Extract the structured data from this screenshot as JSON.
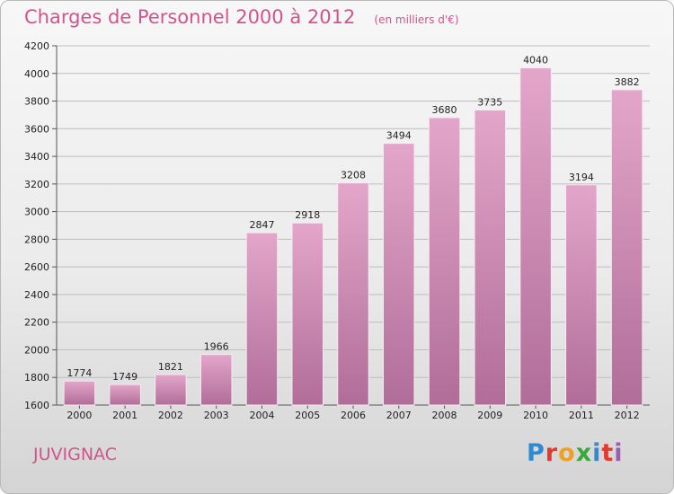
{
  "header": {
    "title": "Charges de Personnel 2000 à 2012",
    "subtitle": "(en milliers d'€)"
  },
  "footer": {
    "commune": "JUVIGNAC",
    "brand": "Proxiti",
    "brand_colors": [
      "#2e8bd0",
      "#e23b2e",
      "#f0a020",
      "#3aa83a",
      "#2e8bd0",
      "#e23b2e",
      "#9c5bb6"
    ]
  },
  "colors": {
    "title": "#d2548c",
    "bar_top": "#e3a6ca",
    "bar_bottom": "#b06d98",
    "grid": "#bdbdbd"
  },
  "chart_data": {
    "type": "bar",
    "title": "Charges de Personnel 2000 à 2012",
    "subtitle": "(en milliers d'€)",
    "categories": [
      "2000",
      "2001",
      "2002",
      "2003",
      "2004",
      "2005",
      "2006",
      "2007",
      "2008",
      "2009",
      "2010",
      "2011",
      "2012"
    ],
    "values": [
      1774,
      1749,
      1821,
      1966,
      2847,
      2918,
      3208,
      3494,
      3680,
      3735,
      4040,
      3194,
      3882
    ],
    "ylim": [
      1600,
      4200
    ],
    "yticks": [
      1600,
      1800,
      2000,
      2200,
      2400,
      2600,
      2800,
      3000,
      3200,
      3400,
      3600,
      3800,
      4000,
      4200
    ],
    "grid": true
  }
}
